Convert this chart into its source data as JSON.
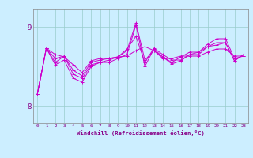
{
  "background_color": "#cceeff",
  "line_color": "#cc00cc",
  "grid_color": "#99cccc",
  "xlabel": "Windchill (Refroidissement éolien,°C)",
  "xlabel_color": "#880088",
  "tick_color": "#880088",
  "ylim": [
    7.78,
    9.22
  ],
  "xlim": [
    -0.5,
    23.5
  ],
  "yticks": [
    8,
    9
  ],
  "xticks": [
    0,
    1,
    2,
    3,
    4,
    5,
    6,
    7,
    8,
    9,
    10,
    11,
    12,
    13,
    14,
    15,
    16,
    17,
    18,
    19,
    20,
    21,
    22,
    23
  ],
  "series": [
    [
      8.15,
      8.73,
      8.65,
      8.62,
      8.52,
      8.42,
      8.57,
      8.6,
      8.6,
      8.62,
      8.63,
      8.7,
      8.75,
      8.7,
      8.6,
      8.6,
      8.63,
      8.63,
      8.63,
      8.68,
      8.72,
      8.72,
      8.63,
      8.63
    ],
    [
      8.15,
      8.73,
      8.6,
      8.63,
      8.45,
      8.38,
      8.55,
      8.58,
      8.6,
      8.62,
      8.7,
      9.05,
      8.58,
      8.7,
      8.62,
      8.55,
      8.62,
      8.68,
      8.68,
      8.78,
      8.85,
      8.85,
      8.6,
      8.63
    ],
    [
      8.15,
      8.73,
      8.55,
      8.63,
      8.4,
      8.35,
      8.52,
      8.55,
      8.58,
      8.62,
      8.72,
      8.88,
      8.55,
      8.73,
      8.65,
      8.58,
      8.58,
      8.65,
      8.65,
      8.75,
      8.8,
      8.8,
      8.57,
      8.65
    ],
    [
      8.15,
      8.73,
      8.52,
      8.58,
      8.35,
      8.3,
      8.5,
      8.55,
      8.55,
      8.6,
      8.65,
      9.02,
      8.5,
      8.72,
      8.62,
      8.53,
      8.57,
      8.65,
      8.68,
      8.75,
      8.77,
      8.8,
      8.57,
      8.65
    ]
  ]
}
